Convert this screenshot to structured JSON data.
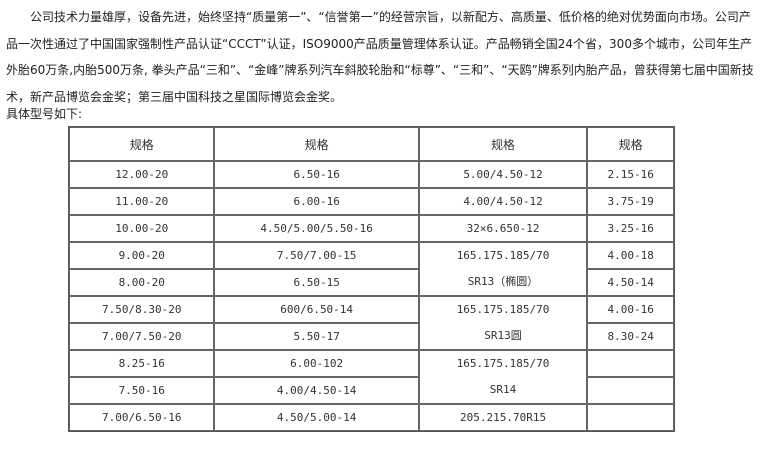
{
  "intro": {
    "paragraph": "公司技术力量雄厚，设备先进，始终坚持“质量第一”、“信誉第一”的经营宗旨，以新配方、高质量、低价格的绝对优势面向市场。公司产品一次性通过了中国国家强制性产品认证“CCCT”认证，ISO9000产品质量管理体系认证。产品畅销全国24个省，300多个城市，公司年生产外胎60万条,内胎500万条, 拳头产品“三和”、“金峰”牌系列汽车斜胶轮胎和“标尊”、“三和”、“天鸥”牌系列内胎产品，曾获得第七届中国新技术，新产品博览会金奖；第三届中国科技之星国际博览会金奖。",
    "subheading": "具体型号如下:"
  },
  "table": {
    "headers": [
      "规格",
      "规格",
      "规格",
      "规格"
    ],
    "col1": [
      "12.00-20",
      "11.00-20",
      "10.00-20",
      "9.00-20",
      "8.00-20",
      "7.50/8.30-20",
      "7.00/7.50-20",
      "8.25-16",
      "7.50-16",
      "7.00/6.50-16"
    ],
    "col2": [
      "6.50-16",
      "6.00-16",
      "4.50/5.00/5.50-16",
      "7.50/7.00-15",
      "6.50-15",
      "600/6.50-14",
      "5.50-17",
      "6.00-102",
      "4.00/4.50-14",
      "4.50/5.00-14"
    ],
    "col3": [
      "5.00/4.50-12",
      "4.00/4.50-12",
      "32×6.650-12",
      {
        "line1": "165.175.185/70",
        "line2": "SR13（椭圆）"
      },
      {
        "line1": "165.175.185/70",
        "line2": "SR13圆"
      },
      {
        "line1": "165.175.185/70",
        "line2": "SR14"
      },
      "205.215.70R15"
    ],
    "col4": [
      "2.15-16",
      "3.75-19",
      "3.25-16",
      "4.00-18",
      "4.50-14",
      "4.00-16",
      "8.30-24",
      "",
      "",
      ""
    ]
  }
}
